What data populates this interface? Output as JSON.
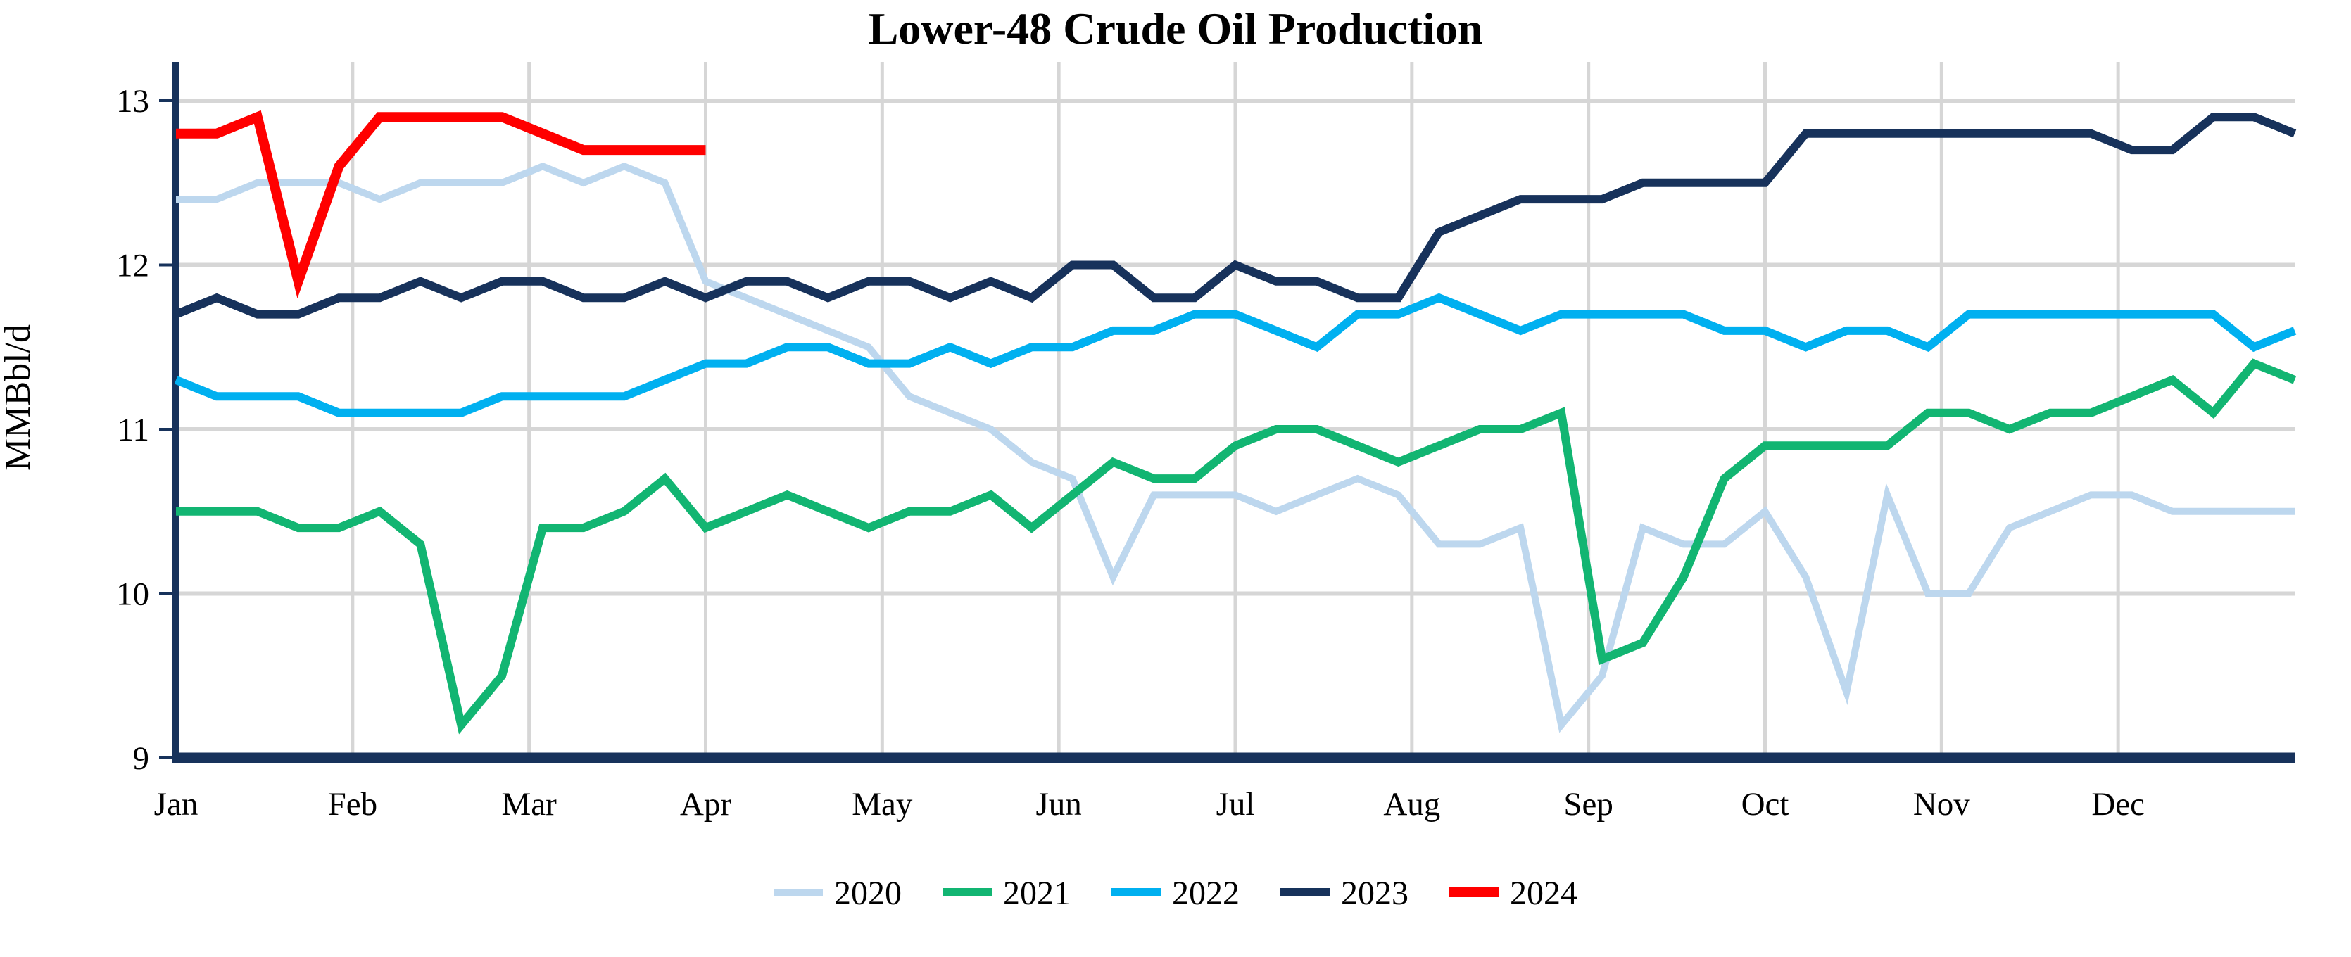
{
  "chart_data": {
    "type": "line",
    "title": "Lower-48 Crude Oil Production",
    "ylabel": "MMBbl/d",
    "xlabel": "",
    "ylim": [
      9,
      13
    ],
    "yticks": [
      13,
      12,
      11,
      10,
      9
    ],
    "xticklabels": [
      "Jan",
      "Feb",
      "Mar",
      "Apr",
      "May",
      "Jun",
      "Jul",
      "Aug",
      "Sep",
      "Oct",
      "Nov",
      "Dec"
    ],
    "x_unit": "weekly observations, Jan through Dec",
    "grid": "on",
    "grid_color": "#D6D6D6",
    "axis_color": "#17325B",
    "legend_position": "bottom-center",
    "series": [
      {
        "name": "2020",
        "color": "#BDD7EE",
        "stroke_width": 10,
        "values": [
          12.4,
          12.4,
          12.5,
          12.5,
          12.5,
          12.4,
          12.5,
          12.5,
          12.5,
          12.6,
          12.5,
          12.6,
          12.5,
          11.9,
          11.8,
          11.7,
          11.6,
          11.5,
          11.2,
          11.1,
          11.0,
          10.8,
          10.7,
          10.1,
          10.6,
          10.6,
          10.6,
          10.5,
          10.6,
          10.7,
          10.6,
          10.3,
          10.3,
          10.4,
          9.2,
          9.5,
          10.4,
          10.3,
          10.3,
          10.5,
          10.1,
          9.4,
          10.6,
          10.0,
          10.0,
          10.4,
          10.5,
          10.6,
          10.6,
          10.5,
          10.5,
          10.5,
          10.5
        ]
      },
      {
        "name": "2021",
        "color": "#12B572",
        "stroke_width": 12,
        "values": [
          10.5,
          10.5,
          10.5,
          10.4,
          10.4,
          10.5,
          10.3,
          9.2,
          9.5,
          10.4,
          10.4,
          10.5,
          10.7,
          10.4,
          10.5,
          10.6,
          10.5,
          10.4,
          10.5,
          10.5,
          10.6,
          10.4,
          10.6,
          10.8,
          10.7,
          10.7,
          10.9,
          11.0,
          11.0,
          10.9,
          10.8,
          10.9,
          11.0,
          11.0,
          11.1,
          9.6,
          9.7,
          10.1,
          10.7,
          10.9,
          10.9,
          10.9,
          10.9,
          11.1,
          11.1,
          11.0,
          11.1,
          11.1,
          11.2,
          11.3,
          11.1,
          11.4,
          11.3
        ]
      },
      {
        "name": "2022",
        "color": "#00B0F0",
        "stroke_width": 12,
        "values": [
          11.3,
          11.2,
          11.2,
          11.2,
          11.1,
          11.1,
          11.1,
          11.1,
          11.2,
          11.2,
          11.2,
          11.2,
          11.3,
          11.4,
          11.4,
          11.5,
          11.5,
          11.4,
          11.4,
          11.5,
          11.4,
          11.5,
          11.5,
          11.6,
          11.6,
          11.7,
          11.7,
          11.6,
          11.5,
          11.7,
          11.7,
          11.8,
          11.7,
          11.6,
          11.7,
          11.7,
          11.7,
          11.7,
          11.6,
          11.6,
          11.5,
          11.6,
          11.6,
          11.5,
          11.7,
          11.7,
          11.7,
          11.7,
          11.7,
          11.7,
          11.7,
          11.5,
          11.6
        ]
      },
      {
        "name": "2023",
        "color": "#17325B",
        "stroke_width": 12,
        "values": [
          11.7,
          11.8,
          11.7,
          11.7,
          11.8,
          11.8,
          11.9,
          11.8,
          11.9,
          11.9,
          11.8,
          11.8,
          11.9,
          11.8,
          11.9,
          11.9,
          11.8,
          11.9,
          11.9,
          11.8,
          11.9,
          11.8,
          12.0,
          12.0,
          11.8,
          11.8,
          12.0,
          11.9,
          11.9,
          11.8,
          11.8,
          12.2,
          12.3,
          12.4,
          12.4,
          12.4,
          12.5,
          12.5,
          12.5,
          12.5,
          12.8,
          12.8,
          12.8,
          12.8,
          12.8,
          12.8,
          12.8,
          12.8,
          12.7,
          12.7,
          12.9,
          12.9,
          12.8
        ]
      },
      {
        "name": "2024",
        "color": "#FF0000",
        "stroke_width": 14,
        "values": [
          12.8,
          12.8,
          12.9,
          11.9,
          12.6,
          12.9,
          12.9,
          12.9,
          12.9,
          12.8,
          12.7,
          12.7,
          12.7,
          12.7
        ]
      }
    ]
  }
}
